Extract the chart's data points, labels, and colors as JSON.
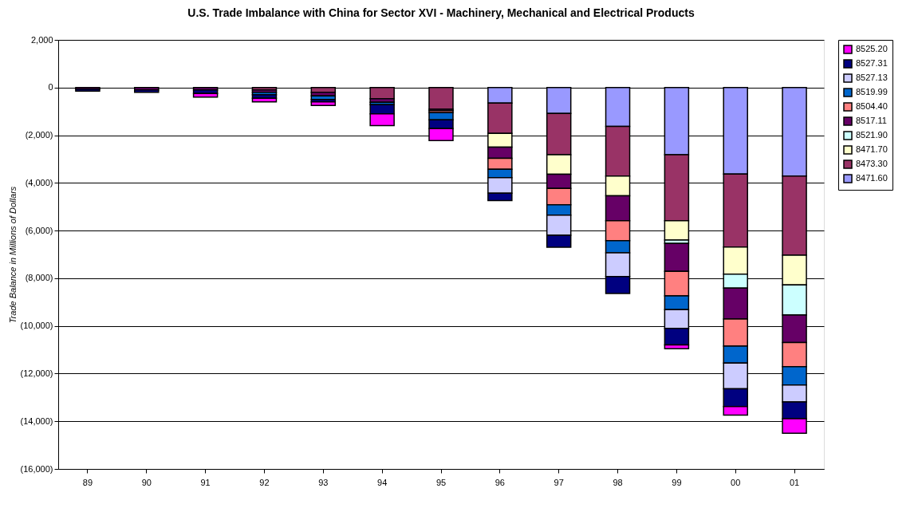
{
  "chart_data": {
    "type": "bar",
    "stacked": true,
    "title": "U.S. Trade Imbalance with China for Sector XVI - Machinery, Mechanical and Electrical Products",
    "ylabel": "Trade Balance in Millions of Dollars",
    "categories": [
      "89",
      "90",
      "91",
      "92",
      "93",
      "94",
      "95",
      "96",
      "97",
      "98",
      "99",
      "00",
      "01"
    ],
    "series": [
      {
        "name": "8471.60",
        "color": "#9999ff",
        "values": [
          null,
          null,
          null,
          null,
          null,
          null,
          null,
          -650,
          -1090,
          -1630,
          -2820,
          -3630,
          -3710
        ]
      },
      {
        "name": "8473.30",
        "color": "#993366",
        "values": [
          null,
          null,
          null,
          -100,
          -200,
          -470,
          -910,
          -1270,
          -1730,
          -2080,
          -2770,
          -3060,
          -3320
        ]
      },
      {
        "name": "8471.70",
        "color": "#ffffcc",
        "values": [
          null,
          null,
          null,
          null,
          null,
          null,
          null,
          -580,
          -820,
          -830,
          -810,
          -1140,
          -1250
        ]
      },
      {
        "name": "8521.90",
        "color": "#ccffff",
        "values": [
          null,
          null,
          null,
          null,
          null,
          null,
          null,
          null,
          null,
          null,
          -140,
          -580,
          -1260
        ]
      },
      {
        "name": "8517.11",
        "color": "#660066",
        "values": [
          -70,
          -100,
          -100,
          -100,
          -150,
          -150,
          -60,
          -470,
          -590,
          -1050,
          -1170,
          -1300,
          -1160
        ]
      },
      {
        "name": "8504.40",
        "color": "#ff8080",
        "values": [
          null,
          null,
          null,
          null,
          null,
          null,
          -80,
          -460,
          -690,
          -830,
          -1030,
          -1140,
          -1010
        ]
      },
      {
        "name": "8519.99",
        "color": "#0066cc",
        "values": [
          null,
          null,
          null,
          -100,
          -150,
          -100,
          -300,
          -350,
          -430,
          -510,
          -580,
          -710,
          -770
        ]
      },
      {
        "name": "8527.13",
        "color": "#ccccff",
        "values": [
          null,
          null,
          null,
          null,
          null,
          null,
          null,
          -650,
          -850,
          -1000,
          -780,
          -1080,
          -710
        ]
      },
      {
        "name": "8527.31",
        "color": "#000080",
        "values": [
          -80,
          -100,
          -150,
          -150,
          -100,
          -380,
          -370,
          -310,
          -500,
          -710,
          -700,
          -740,
          -700
        ]
      },
      {
        "name": "8525.20",
        "color": "#ff00ff",
        "values": [
          null,
          null,
          -150,
          -150,
          -150,
          -500,
          -500,
          null,
          null,
          null,
          -160,
          -360,
          -610
        ]
      }
    ],
    "ylim": [
      -16000,
      2000
    ],
    "yticks": [
      {
        "value": -16000,
        "label": "(16,000)"
      },
      {
        "value": -14000,
        "label": "(14,000)"
      },
      {
        "value": -12000,
        "label": "(12,000)"
      },
      {
        "value": -10000,
        "label": "(10,000)"
      },
      {
        "value": -8000,
        "label": "(8,000)"
      },
      {
        "value": -6000,
        "label": "(6,000)"
      },
      {
        "value": -4000,
        "label": "(4,000)"
      },
      {
        "value": -2000,
        "label": "(2,000)"
      },
      0,
      "2,000"
    ],
    "grid": "y",
    "legend": "right"
  }
}
